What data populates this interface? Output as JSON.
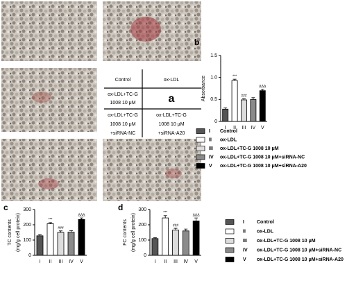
{
  "panel_a": {
    "panel": "a",
    "header": [
      "Control",
      "ox-LDL"
    ],
    "cells": [
      [
        "ox-LDL+TC-G",
        "1008 10 μM"
      ],
      [
        "ox-LDL+TC-G",
        "1008 10 μM",
        "+siRNA-NC"
      ],
      [
        "ox-LDL+TC-G",
        "1008 10 μM",
        "+siRNA-A20"
      ]
    ]
  },
  "chart_data": [
    {
      "type": "bar",
      "panel": "b",
      "ylabel": [
        "Absorbance"
      ],
      "categories": [
        "I",
        "II",
        "III",
        "IV",
        "V"
      ],
      "values": [
        0.28,
        0.93,
        0.49,
        0.5,
        0.7
      ],
      "errors": [
        0.03,
        0.03,
        0.03,
        0.04,
        0.03
      ],
      "annotations": [
        null,
        "***",
        "###",
        null,
        "ΔΔΔ"
      ],
      "bar_colors": [
        "#555555",
        "#ffffff",
        "#dddddd",
        "#8a8a8a",
        "#000000"
      ],
      "ylim": [
        0,
        1.5
      ],
      "yticks": [
        0,
        0.5,
        {
          "value": 1,
          "label": "1.0"
        },
        1.5
      ],
      "legend": [
        "Control",
        "ox-LDL",
        "ox-LDL+TC-G 1008 10 μM",
        "ox-LDL+TC-G 1008 10 μM+siRNA-NC",
        "ox-LDL+TC-G 1008 10 μM+siRNA-A20"
      ]
    },
    {
      "type": "bar",
      "panel": "c",
      "ylabel": [
        "TC contents",
        "(mg/g cell protein)"
      ],
      "categories": [
        "I",
        "II",
        "III",
        "IV",
        "V"
      ],
      "values": [
        128,
        207,
        150,
        152,
        235
      ],
      "errors": [
        8,
        7,
        10,
        10,
        10
      ],
      "annotations": [
        null,
        "***",
        "###",
        null,
        "ΔΔΔ"
      ],
      "bar_colors": [
        "#555555",
        "#ffffff",
        "#dddddd",
        "#8a8a8a",
        "#000000"
      ],
      "ylim": [
        0,
        300
      ],
      "yticks": [
        0,
        100,
        200,
        300
      ]
    },
    {
      "type": "bar",
      "panel": "d",
      "ylabel": [
        "FC contents",
        "(mg/g cell protein)"
      ],
      "categories": [
        "I",
        "II",
        "III",
        "IV",
        "V"
      ],
      "values": [
        110,
        245,
        165,
        160,
        225
      ],
      "errors": [
        5,
        15,
        12,
        12,
        20
      ],
      "annotations": [
        null,
        "***",
        "###",
        null,
        "ΔΔΔ"
      ],
      "bar_colors": [
        "#555555",
        "#ffffff",
        "#dddddd",
        "#8a8a8a",
        "#000000"
      ],
      "ylim": [
        0,
        300
      ],
      "yticks": [
        0,
        100,
        200,
        300
      ],
      "legend": [
        "Control",
        "ox-LDL",
        "ox-LDL+TC-G 1008 10 μM",
        "ox-LDL+TC-G 1008 10 μM+siRNA-NC",
        "ox-LDL+TC-G 1008 10 μM+siRNA-A20"
      ]
    }
  ]
}
